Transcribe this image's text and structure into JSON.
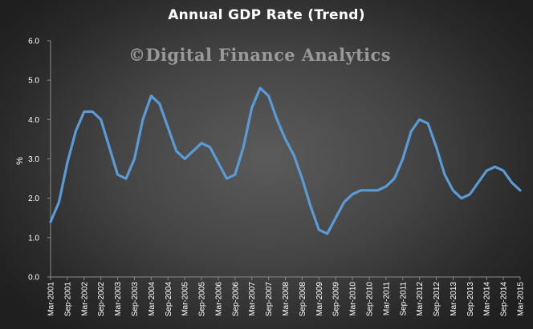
{
  "chart_data": {
    "type": "line",
    "title": "Annual  GDP  Rate (Trend)",
    "watermark": "©Digital Finance Analytics",
    "ylabel": "%",
    "xlabel": "",
    "ylim": [
      0,
      6
    ],
    "yticks": [
      "0.0",
      "1.0",
      "2.0",
      "3.0",
      "4.0",
      "5.0",
      "6.0"
    ],
    "grid": false,
    "legend": "none",
    "line_color": "#5b9bd5",
    "x_labels": [
      "Mar-2001",
      "Sep-2001",
      "Mar-2002",
      "Sep-2002",
      "Mar-2003",
      "Sep-2003",
      "Mar-2004",
      "Sep-2004",
      "Mar-2005",
      "Sep-2005",
      "Mar-2006",
      "Sep-2006",
      "Mar-2007",
      "Sep-2007",
      "Mar-2008",
      "Sep-2008",
      "Mar-2009",
      "Sep-2009",
      "Mar-2010",
      "Sep-2010",
      "Mar-2011",
      "Sep-2011",
      "Mar-2012",
      "Sep-2012",
      "Mar-2013",
      "Sep-2013",
      "Mar-2014",
      "Sep-2014",
      "Mar-2015"
    ],
    "series": [
      {
        "values": [
          1.4,
          1.9,
          2.9,
          3.7,
          4.2,
          4.2,
          4.0,
          3.3,
          2.6,
          2.5,
          3.0,
          4.0,
          4.6,
          4.4,
          3.8,
          3.2,
          3.0,
          3.2,
          3.4,
          3.3,
          2.9,
          2.5,
          2.6,
          3.3,
          4.3,
          4.8,
          4.6,
          4.0,
          3.5,
          3.1,
          2.5,
          1.8,
          1.2,
          1.1,
          1.5,
          1.9,
          2.1,
          2.2,
          2.2,
          2.2,
          2.3,
          2.5,
          3.0,
          3.7,
          4.0,
          3.9,
          3.3,
          2.6,
          2.2,
          2.0,
          2.1,
          2.4,
          2.7,
          2.8,
          2.7,
          2.4,
          2.2
        ]
      }
    ]
  }
}
